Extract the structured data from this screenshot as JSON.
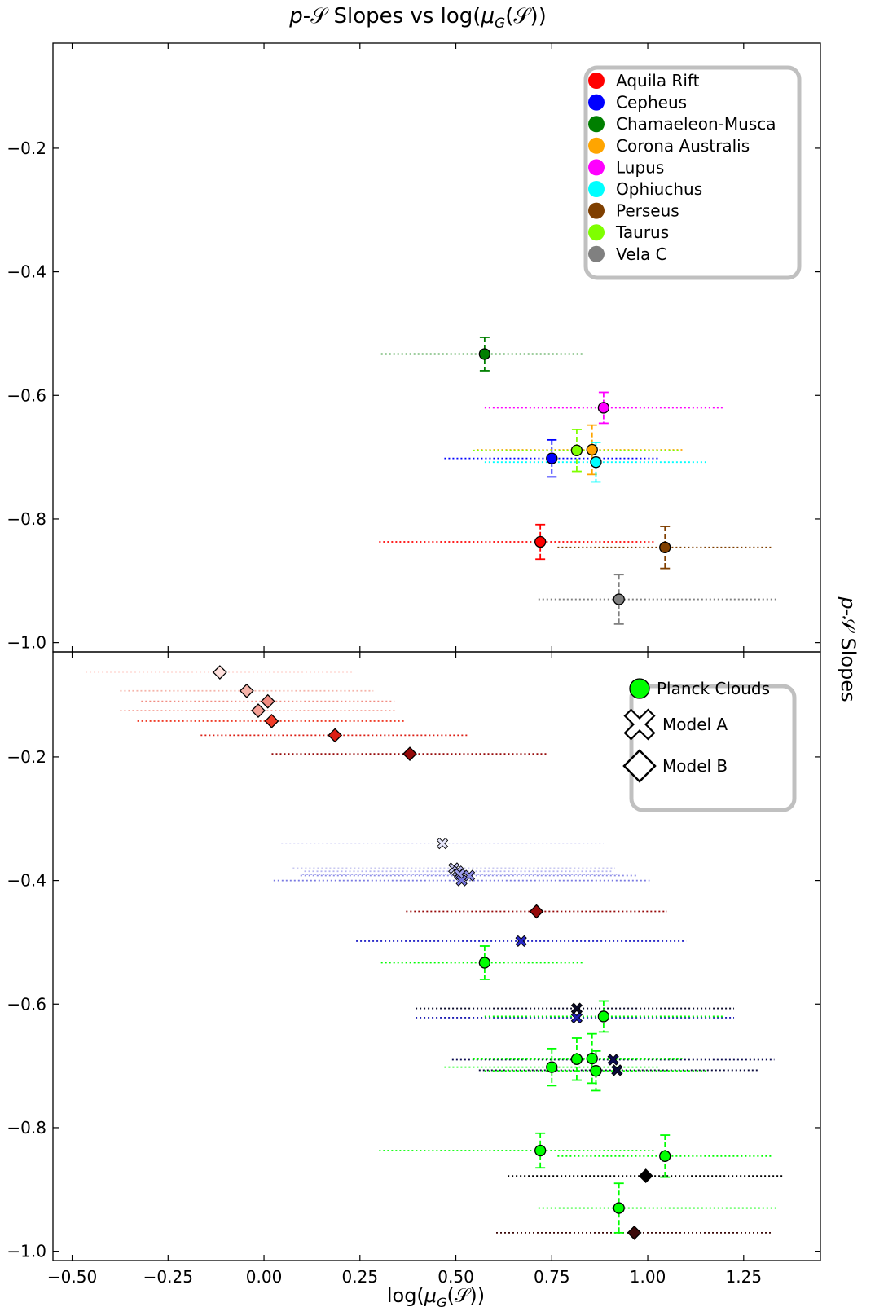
{
  "chart_data": {
    "type": "scatter",
    "title": "p-𝒮 Slopes vs log(μ_G(𝒮))",
    "title_parts": {
      "p": "p",
      "rest": "-𝒮 Slopes vs log(",
      "mu": "μ",
      "sub": "G",
      "tail": "(𝒮))"
    },
    "xlabel": "log(μ_G(𝒮))",
    "xlabel_parts": {
      "pre": "log(",
      "mu": "μ",
      "sub": "G",
      "tail": "(𝒮))"
    },
    "ylabel": "p-𝒮 Slopes",
    "ylabel_parts": {
      "p": "p",
      "rest": "-𝒮 Slopes"
    },
    "xlim": [
      -0.55,
      1.45
    ],
    "xticks": [
      -0.5,
      -0.25,
      0.0,
      0.25,
      0.5,
      0.75,
      1.0,
      1.25
    ],
    "xtick_labels": [
      "−0.50",
      "−0.25",
      "0.00",
      "0.25",
      "0.50",
      "0.75",
      "1.00",
      "1.25"
    ],
    "top_panel": {
      "ylim": [
        -1.015,
        -0.03
      ],
      "yticks": [
        -0.2,
        -0.4,
        -0.6,
        -0.8,
        -1.0
      ],
      "ytick_labels": [
        "−0.2",
        "−0.4",
        "−0.6",
        "−0.8",
        "−1.0"
      ],
      "legend_position": "top-right",
      "series": [
        {
          "name": "Aquila Rift",
          "color": "#ff0000",
          "x": 0.72,
          "y": -0.837,
          "xerr": [
            0.42,
            0.3
          ],
          "yerr": 0.028
        },
        {
          "name": "Cepheus",
          "color": "#0000ff",
          "x": 0.75,
          "y": -0.702,
          "xerr": [
            0.28,
            0.28
          ],
          "yerr": 0.03
        },
        {
          "name": "Chamaeleon-Musca",
          "color": "#007f00",
          "x": 0.575,
          "y": -0.533,
          "xerr": [
            0.27,
            0.26
          ],
          "yerr": 0.027
        },
        {
          "name": "Corona Australis",
          "color": "#ffa500",
          "x": 0.855,
          "y": -0.688,
          "xerr": [
            0.3,
            0.24
          ],
          "yerr": 0.04
        },
        {
          "name": "Lupus",
          "color": "#ff00ff",
          "x": 0.885,
          "y": -0.62,
          "xerr": [
            0.31,
            0.31
          ],
          "yerr": 0.025
        },
        {
          "name": "Ophiuchus",
          "color": "#00ffff",
          "x": 0.865,
          "y": -0.708,
          "xerr": [
            0.29,
            0.29
          ],
          "yerr": 0.032
        },
        {
          "name": "Perseus",
          "color": "#7f3f00",
          "x": 1.045,
          "y": -0.846,
          "xerr": [
            0.28,
            0.28
          ],
          "yerr": 0.034
        },
        {
          "name": "Taurus",
          "color": "#7fff00",
          "x": 0.815,
          "y": -0.689,
          "xerr": [
            0.27,
            0.27
          ],
          "yerr": 0.034
        },
        {
          "name": "Vela C",
          "color": "#808080",
          "x": 0.925,
          "y": -0.93,
          "xerr": [
            0.21,
            0.41
          ],
          "yerr": 0.04
        }
      ]
    },
    "bottom_panel": {
      "ylim": [
        -1.015,
        -0.03
      ],
      "yticks": [
        -0.2,
        -0.4,
        -0.6,
        -0.8,
        -1.0
      ],
      "ytick_labels": [
        "−0.2",
        "−0.4",
        "−0.6",
        "−0.8",
        "−1.0"
      ],
      "legend_position": "top-right",
      "legend": [
        {
          "label": "Planck Clouds",
          "marker": "circle"
        },
        {
          "label": "Model A",
          "marker": "cross"
        },
        {
          "label": "Model B",
          "marker": "diamond"
        }
      ],
      "planck_color": "#00ff00",
      "planck": [
        {
          "x": 0.72,
          "y": -0.837,
          "xerr": [
            0.42,
            0.3
          ],
          "yerr": 0.028
        },
        {
          "x": 0.75,
          "y": -0.702,
          "xerr": [
            0.28,
            0.28
          ],
          "yerr": 0.03
        },
        {
          "x": 0.575,
          "y": -0.533,
          "xerr": [
            0.27,
            0.26
          ],
          "yerr": 0.027
        },
        {
          "x": 0.855,
          "y": -0.688,
          "xerr": [
            0.3,
            0.24
          ],
          "yerr": 0.04
        },
        {
          "x": 0.885,
          "y": -0.62,
          "xerr": [
            0.31,
            0.31
          ],
          "yerr": 0.025
        },
        {
          "x": 0.865,
          "y": -0.708,
          "xerr": [
            0.29,
            0.29
          ],
          "yerr": 0.032
        },
        {
          "x": 1.045,
          "y": -0.846,
          "xerr": [
            0.28,
            0.28
          ],
          "yerr": 0.034
        },
        {
          "x": 0.815,
          "y": -0.689,
          "xerr": [
            0.27,
            0.27
          ],
          "yerr": 0.034
        },
        {
          "x": 0.925,
          "y": -0.93,
          "xerr": [
            0.21,
            0.41
          ],
          "yerr": 0.04
        }
      ],
      "model_a": [
        {
          "x": 0.465,
          "y": -0.34,
          "xerr": [
            0.42,
            0.42
          ],
          "color": "#e6e6fa"
        },
        {
          "x": 0.495,
          "y": -0.38,
          "xerr": [
            0.42,
            0.42
          ],
          "color": "#c8c8f0"
        },
        {
          "x": 0.505,
          "y": -0.385,
          "xerr": [
            0.4,
            0.4
          ],
          "color": "#b4b4f0"
        },
        {
          "x": 0.51,
          "y": -0.39,
          "xerr": [
            0.41,
            0.41
          ],
          "color": "#a0a0eb"
        },
        {
          "x": 0.535,
          "y": -0.392,
          "xerr": [
            0.44,
            0.44
          ],
          "color": "#8c8ce6"
        },
        {
          "x": 0.515,
          "y": -0.4,
          "xerr": [
            0.49,
            0.49
          ],
          "color": "#7878e1"
        },
        {
          "x": 0.67,
          "y": -0.498,
          "xerr": [
            0.43,
            0.43
          ],
          "color": "#2828c8"
        },
        {
          "x": 0.815,
          "y": -0.622,
          "xerr": [
            0.42,
            0.41
          ],
          "color": "#1e1eb4"
        },
        {
          "x": 0.815,
          "y": -0.607,
          "xerr": [
            0.42,
            0.41
          ],
          "color": "#0a0a28"
        },
        {
          "x": 0.91,
          "y": -0.69,
          "xerr": [
            0.42,
            0.42
          ],
          "color": "#0a0a50"
        },
        {
          "x": 0.92,
          "y": -0.707,
          "xerr": [
            0.36,
            0.37
          ],
          "color": "#0a0a3c"
        }
      ],
      "model_b": [
        {
          "x": -0.115,
          "y": -0.063,
          "xerr": [
            0.35,
            0.35
          ],
          "color": "#ffe0dc"
        },
        {
          "x": -0.045,
          "y": -0.093,
          "xerr": [
            0.33,
            0.33
          ],
          "color": "#f5b4aa"
        },
        {
          "x": 0.01,
          "y": -0.11,
          "xerr": [
            0.33,
            0.33
          ],
          "color": "#f08c82"
        },
        {
          "x": -0.015,
          "y": -0.125,
          "xerr": [
            0.36,
            0.36
          ],
          "color": "#f5a096"
        },
        {
          "x": 0.02,
          "y": -0.142,
          "xerr": [
            0.35,
            0.35
          ],
          "color": "#f03c28"
        },
        {
          "x": 0.185,
          "y": -0.165,
          "xerr": [
            0.35,
            0.35
          ],
          "color": "#dc1e14"
        },
        {
          "x": 0.38,
          "y": -0.195,
          "xerr": [
            0.36,
            0.36
          ],
          "color": "#960a0a"
        },
        {
          "x": 0.71,
          "y": -0.45,
          "xerr": [
            0.34,
            0.34
          ],
          "color": "#960a0a"
        },
        {
          "x": 0.995,
          "y": -0.878,
          "xerr": [
            0.36,
            0.36
          ],
          "color": "#000000"
        },
        {
          "x": 0.965,
          "y": -0.97,
          "xerr": [
            0.36,
            0.36
          ],
          "color": "#3c0a0a"
        }
      ]
    }
  }
}
